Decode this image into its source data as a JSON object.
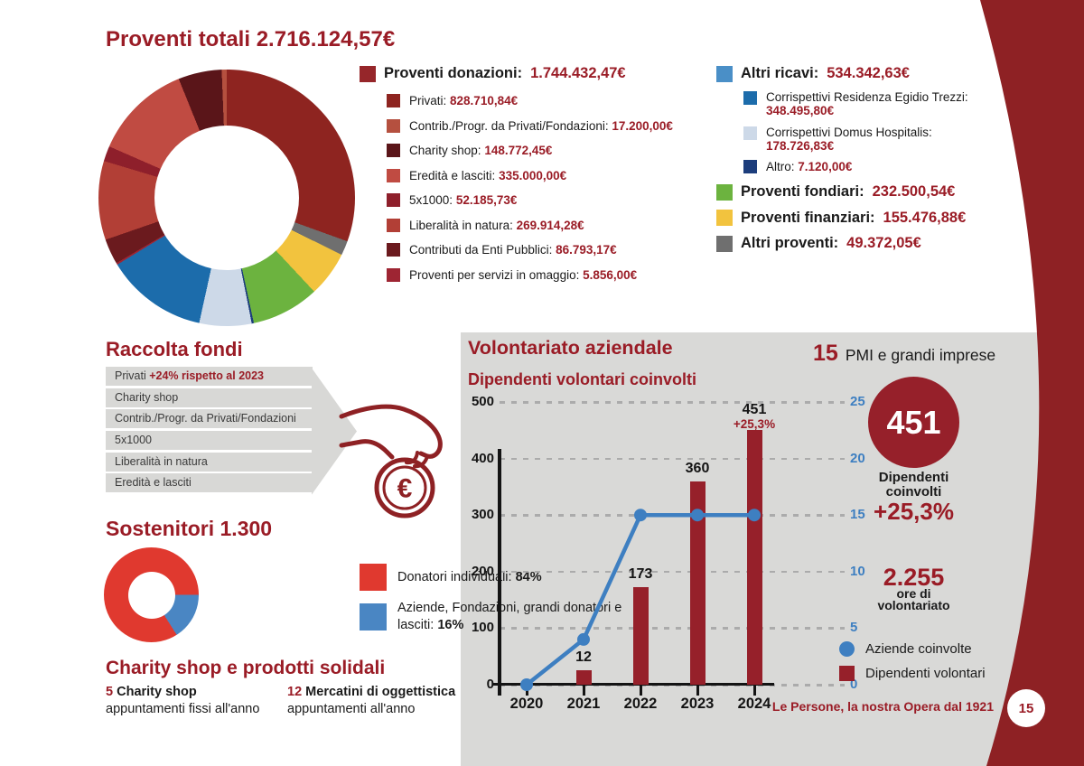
{
  "page": {
    "footer": "Le Persone, la nostra Opera dal 1921",
    "page_number": "15",
    "colors": {
      "brand_red": "#9A1C26",
      "band_red": "#8E2124",
      "bar_red": "#96202A",
      "panel_gray": "#D9D9D7",
      "funnel_gray": "#D8D8D6",
      "line_blue": "#3E7FC1",
      "text_dark": "#1A1A1A"
    }
  },
  "proventi": {
    "title": "Proventi totali",
    "total": "2.716.124,57€",
    "donazioni": {
      "label": "Proventi donazioni:",
      "value": "1.744.432,47€",
      "color": "#96262A",
      "items": [
        {
          "label": "Privati:",
          "value": "828.710,84€",
          "color": "#8E2420"
        },
        {
          "label": "Contrib./Progr. da Privati/Fondazioni:",
          "value": "17.200,00€",
          "color": "#B5503F"
        },
        {
          "label": "Charity shop:",
          "value": "148.772,45€",
          "color": "#5A1519"
        },
        {
          "label": "Eredità e lasciti:",
          "value": "335.000,00€",
          "color": "#C04B42"
        },
        {
          "label": "5x1000:",
          "value": "52.185,73€",
          "color": "#8E1F2B"
        },
        {
          "label": "Liberalità in natura:",
          "value": "269.914,28€",
          "color": "#B23F36"
        },
        {
          "label": "Contributi da Enti Pubblici:",
          "value": "86.793,17€",
          "color": "#6B1A1E"
        },
        {
          "label": "Proventi per servizi in omaggio:",
          "value": "5.856,00€",
          "color": "#9E2533"
        }
      ]
    },
    "altri_ricavi": {
      "label": "Altri ricavi:",
      "value": "534.342,63€",
      "color": "#4A8FC7",
      "items": [
        {
          "label": "Corrispettivi Residenza Egidio Trezzi:",
          "value": "348.495,80€",
          "color": "#1C6CAB",
          "inline": false
        },
        {
          "label": "Corrispettivi Domus Hospitalis:",
          "value": "178.726,83€",
          "color": "#CDD9E8",
          "inline": false
        },
        {
          "label": "Altro:",
          "value": "7.120,00€",
          "color": "#1C3D7C",
          "inline": true
        }
      ]
    },
    "other_mains": [
      {
        "label": "Proventi fondiari:",
        "value": "232.500,54€",
        "color": "#6CB33F"
      },
      {
        "label": "Proventi finanziari:",
        "value": "155.476,88€",
        "color": "#F2C33E"
      },
      {
        "label": "Altri proventi:",
        "value": "49.372,05€",
        "color": "#6F6F6F"
      }
    ]
  },
  "raccolta": {
    "title": "Raccolta fondi",
    "items": [
      {
        "text": "Privati ",
        "highlight": "+24% rispetto al 2023"
      },
      {
        "text": "Charity shop"
      },
      {
        "text": "Contrib./Progr. da Privati/Fondazioni"
      },
      {
        "text": "5x1000"
      },
      {
        "text": "Liberalità in natura"
      },
      {
        "text": "Eredità e lasciti"
      }
    ]
  },
  "sostenitori": {
    "title": "Sostenitori",
    "count": "1.300",
    "legend": [
      {
        "label": "Donatori individuali: ",
        "value": "84%",
        "color": "#E0392F"
      },
      {
        "label": "Aziende, Fondazioni, grandi donatori e lasciti: ",
        "value": "16%",
        "color": "#4A86C3"
      }
    ]
  },
  "charity": {
    "title": "Charity shop e prodotti solidali",
    "cols": [
      {
        "num": "5",
        "bold": "Charity shop",
        "line2": "appuntamenti fissi all'anno"
      },
      {
        "num": "12",
        "bold": "Mercatini di oggettistica",
        "line2": "appuntamenti all'anno"
      }
    ]
  },
  "volontariato": {
    "title": "Volontariato aziendale",
    "pmi_num": "15",
    "pmi_label": "PMI e grandi imprese",
    "chart_title": "Dipendenti volontari coinvolti",
    "kpi_value": "451",
    "kpi_label_1": "Dipendenti",
    "kpi_label_2": "coinvolti",
    "kpi_delta": "+25,3%",
    "hours_value": "2.255",
    "hours_label_1": "ore di",
    "hours_label_2": "volontariato",
    "legend": [
      {
        "label": "Aziende coinvolte",
        "color": "#3E7FC1",
        "shape": "circle"
      },
      {
        "label": "Dipendenti volontari",
        "color": "#96202A",
        "shape": "square"
      }
    ]
  },
  "chart_data": [
    {
      "type": "pie",
      "title": "Proventi totali 2.716.124,57€",
      "donut": true,
      "start_deg": 0,
      "slices": [
        {
          "label": "Privati",
          "value": 828710.84,
          "pct": 30.51,
          "color": "#8E2420"
        },
        {
          "label": "Altri proventi",
          "value": 49372.05,
          "pct": 1.82,
          "color": "#6F6F6F"
        },
        {
          "label": "Proventi finanziari",
          "value": 155476.88,
          "pct": 5.72,
          "color": "#F2C33E"
        },
        {
          "label": "Proventi fondiari",
          "value": 232500.54,
          "pct": 8.56,
          "color": "#6CB33F"
        },
        {
          "label": "Altro (altri ricavi)",
          "value": 7120.0,
          "pct": 0.26,
          "color": "#1C3D7C"
        },
        {
          "label": "Corrispettivi Domus Hospitalis",
          "value": 178726.83,
          "pct": 6.58,
          "color": "#CDD9E8"
        },
        {
          "label": "Corrispettivi Residenza Egidio Trezzi",
          "value": 348495.8,
          "pct": 12.83,
          "color": "#1C6CAB"
        },
        {
          "label": "Proventi per servizi in omaggio",
          "value": 5856.0,
          "pct": 0.22,
          "color": "#9E2533"
        },
        {
          "label": "Contributi da Enti Pubblici",
          "value": 86793.17,
          "pct": 3.2,
          "color": "#6B1A1E"
        },
        {
          "label": "Liberalità in natura",
          "value": 269914.28,
          "pct": 9.94,
          "color": "#B23F36"
        },
        {
          "label": "5x1000",
          "value": 52185.73,
          "pct": 1.92,
          "color": "#8E1F2B"
        },
        {
          "label": "Eredità e lasciti",
          "value": 335000.0,
          "pct": 12.33,
          "color": "#C04B42"
        },
        {
          "label": "Charity shop",
          "value": 148772.45,
          "pct": 5.48,
          "color": "#5A1519"
        },
        {
          "label": "Contrib./Progr. da Privati/Fondazioni",
          "value": 17200.0,
          "pct": 0.63,
          "color": "#B5503F"
        }
      ]
    },
    {
      "type": "pie",
      "title": "Sostenitori 1.300",
      "donut": true,
      "start_deg": 90,
      "slices": [
        {
          "label": "Aziende, Fondazioni, grandi donatori e lasciti",
          "pct": 16,
          "color": "#4A86C3"
        },
        {
          "label": "Donatori individuali",
          "pct": 84,
          "color": "#E0392F"
        }
      ]
    },
    {
      "type": "bar",
      "title": "Dipendenti volontari coinvolti",
      "categories": [
        "2020",
        "2021",
        "2022",
        "2023",
        "2024"
      ],
      "series": [
        {
          "name": "Dipendenti volontari",
          "type": "bar",
          "axis": "left",
          "values": [
            0,
            12,
            173,
            360,
            451
          ],
          "labels": [
            "",
            "12",
            "173",
            "360",
            "451"
          ],
          "color": "#96202A"
        },
        {
          "name": "Aziende coinvolte",
          "type": "line",
          "axis": "right",
          "values": [
            0,
            4,
            15,
            15,
            15
          ],
          "color": "#3E7FC1"
        }
      ],
      "left_axis": {
        "min": 0,
        "max": 500,
        "step": 100
      },
      "right_axis": {
        "min": 0,
        "max": 25,
        "step": 5
      },
      "annotation_2024": "+25,3%",
      "grid": "dashed",
      "legend_position": "bottom-right"
    }
  ]
}
